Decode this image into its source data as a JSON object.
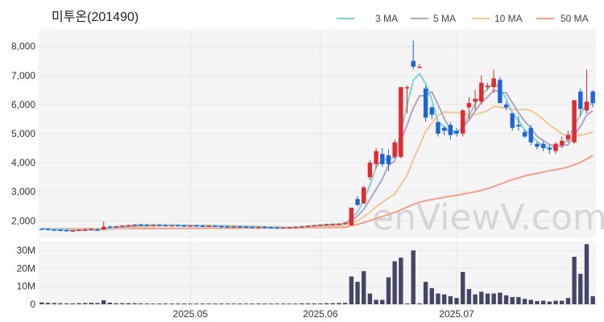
{
  "chart_data": {
    "type": "candlestick",
    "title": "미투온(201490)",
    "watermark": "enViewV.com",
    "legend": [
      {
        "name": "3 MA",
        "color": "#7fd3cf"
      },
      {
        "name": "5 MA",
        "color": "#b4a2c8"
      },
      {
        "name": "10 MA",
        "color": "#f2c79a"
      },
      {
        "name": "50 MA",
        "color": "#f2a08c"
      }
    ],
    "price_axis": {
      "ylim": [
        1400,
        8600
      ],
      "ticks": [
        "2,000",
        "3,000",
        "4,000",
        "5,000",
        "6,000",
        "7,000",
        "8,000"
      ],
      "tick_values": [
        2000,
        3000,
        4000,
        5000,
        6000,
        7000,
        8000
      ]
    },
    "volume_axis": {
      "ylim": [
        0,
        35
      ],
      "ticks": [
        "0",
        "10M",
        "20M",
        "30M"
      ],
      "tick_values": [
        0,
        10,
        20,
        30
      ]
    },
    "x_labels": [
      {
        "label": "2025.05",
        "index": 24
      },
      {
        "label": "2025.06",
        "index": 45
      },
      {
        "label": "2025.07",
        "index": 67
      }
    ],
    "colors": {
      "up": "#e8262b",
      "down": "#1b64da",
      "volume": "#454568",
      "grid": "#e6e6e6",
      "plot_bg": "#f5f5f5"
    },
    "candles": [
      [
        1730,
        1760,
        1700,
        1720,
        1.0
      ],
      [
        1720,
        1740,
        1690,
        1700,
        0.8
      ],
      [
        1700,
        1720,
        1680,
        1690,
        0.7
      ],
      [
        1690,
        1710,
        1670,
        1680,
        0.6
      ],
      [
        1680,
        1700,
        1660,
        1670,
        0.5
      ],
      [
        1670,
        1690,
        1650,
        1670,
        0.5
      ],
      [
        1670,
        1700,
        1650,
        1690,
        0.6
      ],
      [
        1690,
        1720,
        1660,
        1700,
        0.7
      ],
      [
        1700,
        1730,
        1680,
        1720,
        0.8
      ],
      [
        1700,
        1740,
        1660,
        1690,
        0.7
      ],
      [
        1700,
        1980,
        1680,
        1800,
        2.2
      ],
      [
        1800,
        1840,
        1760,
        1790,
        0.9
      ],
      [
        1790,
        1830,
        1770,
        1810,
        0.6
      ],
      [
        1810,
        1850,
        1790,
        1830,
        0.6
      ],
      [
        1830,
        1870,
        1810,
        1850,
        0.6
      ],
      [
        1850,
        1890,
        1830,
        1870,
        0.6
      ],
      [
        1870,
        1900,
        1840,
        1860,
        0.5
      ],
      [
        1860,
        1880,
        1840,
        1850,
        0.4
      ],
      [
        1850,
        1870,
        1830,
        1860,
        0.4
      ],
      [
        1860,
        1880,
        1840,
        1850,
        0.4
      ],
      [
        1850,
        1870,
        1830,
        1840,
        0.4
      ],
      [
        1840,
        1860,
        1820,
        1850,
        0.4
      ],
      [
        1850,
        1870,
        1830,
        1840,
        0.4
      ],
      [
        1840,
        1860,
        1820,
        1830,
        0.4
      ],
      [
        1830,
        1850,
        1810,
        1840,
        0.4
      ],
      [
        1840,
        1860,
        1820,
        1830,
        0.4
      ],
      [
        1830,
        1850,
        1810,
        1820,
        0.4
      ],
      [
        1820,
        1840,
        1800,
        1830,
        0.4
      ],
      [
        1830,
        1850,
        1810,
        1820,
        0.4
      ],
      [
        1820,
        1840,
        1800,
        1810,
        0.4
      ],
      [
        1810,
        1830,
        1790,
        1800,
        0.4
      ],
      [
        1800,
        1820,
        1780,
        1810,
        0.4
      ],
      [
        1810,
        1830,
        1790,
        1800,
        0.4
      ],
      [
        1800,
        1820,
        1780,
        1790,
        0.4
      ],
      [
        1790,
        1810,
        1770,
        1780,
        0.4
      ],
      [
        1780,
        1800,
        1760,
        1790,
        0.4
      ],
      [
        1790,
        1810,
        1770,
        1780,
        0.4
      ],
      [
        1780,
        1800,
        1760,
        1770,
        0.4
      ],
      [
        1770,
        1790,
        1750,
        1760,
        0.4
      ],
      [
        1760,
        1780,
        1740,
        1770,
        0.4
      ],
      [
        1770,
        1790,
        1750,
        1780,
        0.4
      ],
      [
        1780,
        1800,
        1760,
        1790,
        0.4
      ],
      [
        1790,
        1820,
        1770,
        1810,
        0.5
      ],
      [
        1810,
        1840,
        1790,
        1830,
        0.5
      ],
      [
        1830,
        1860,
        1810,
        1850,
        0.5
      ],
      [
        1850,
        1880,
        1830,
        1870,
        0.5
      ],
      [
        1870,
        1900,
        1850,
        1880,
        0.6
      ],
      [
        1880,
        1910,
        1860,
        1890,
        0.6
      ],
      [
        1890,
        1920,
        1870,
        1900,
        0.7
      ],
      [
        1900,
        1950,
        1880,
        1940,
        0.8
      ],
      [
        1850,
        2450,
        1840,
        2450,
        15.5
      ],
      [
        2750,
        2850,
        2500,
        2550,
        12.5
      ],
      [
        2600,
        3200,
        2600,
        3150,
        18.5
      ],
      [
        3500,
        4100,
        3400,
        4000,
        6.0
      ],
      [
        3950,
        4500,
        3800,
        4400,
        2.5
      ],
      [
        4300,
        4500,
        3850,
        3950,
        2.5
      ],
      [
        4250,
        4450,
        3700,
        3950,
        15.0
      ],
      [
        4200,
        4800,
        4150,
        4700,
        24.0
      ],
      [
        4200,
        6600,
        4150,
        6600,
        26.0
      ],
      [
        6600,
        6650,
        5700,
        6600,
        0.5
      ],
      [
        7500,
        8200,
        7200,
        7300,
        30.0
      ],
      [
        7300,
        7400,
        7300,
        7300,
        0.5
      ],
      [
        6550,
        6650,
        5400,
        5550,
        12.5
      ],
      [
        5900,
        5950,
        5500,
        5650,
        9.0
      ],
      [
        5400,
        5400,
        4900,
        5000,
        6.0
      ],
      [
        5200,
        5250,
        4950,
        5100,
        5.5
      ],
      [
        5300,
        5400,
        4800,
        4950,
        4.5
      ],
      [
        5100,
        5200,
        4900,
        5000,
        3.5
      ],
      [
        5000,
        5850,
        4900,
        5800,
        18.0
      ],
      [
        5900,
        6250,
        5500,
        6050,
        8.5
      ],
      [
        6100,
        6500,
        5800,
        6200,
        5.5
      ],
      [
        6100,
        7000,
        6000,
        6750,
        7.0
      ],
      [
        6600,
        6750,
        6500,
        6650,
        6.0
      ],
      [
        6600,
        7200,
        6400,
        6900,
        6.0
      ],
      [
        6850,
        6950,
        6100,
        6050,
        6.5
      ],
      [
        6000,
        6100,
        5800,
        5900,
        5.0
      ],
      [
        5700,
        5700,
        5100,
        5200,
        4.0
      ],
      [
        5300,
        5600,
        5100,
        5250,
        4.0
      ],
      [
        5050,
        5150,
        4850,
        4900,
        3.0
      ],
      [
        5200,
        5300,
        4600,
        4700,
        2.5
      ],
      [
        4650,
        4700,
        4450,
        4550,
        1.8
      ],
      [
        4650,
        4750,
        4400,
        4500,
        2.0
      ],
      [
        4500,
        4600,
        4300,
        4450,
        1.5
      ],
      [
        4400,
        4700,
        4300,
        4650,
        2.0
      ],
      [
        4600,
        4900,
        4500,
        4750,
        2.0
      ],
      [
        4800,
        5100,
        4700,
        4950,
        3.5
      ],
      [
        4700,
        6150,
        4650,
        6150,
        26.5
      ],
      [
        6450,
        6550,
        5600,
        5850,
        17.0
      ],
      [
        5800,
        7200,
        5700,
        6100,
        33.5
      ],
      [
        6450,
        6500,
        5900,
        6050,
        4.5
      ]
    ],
    "ma3": [
      1725,
      1715,
      1703,
      1690,
      1680,
      1673,
      1677,
      1687,
      1703,
      1703,
      1737,
      1760,
      1800,
      1810,
      1830,
      1850,
      1860,
      1860,
      1857,
      1853,
      1850,
      1847,
      1843,
      1837,
      1837,
      1833,
      1830,
      1827,
      1823,
      1820,
      1810,
      1807,
      1803,
      1800,
      1790,
      1787,
      1783,
      1780,
      1770,
      1767,
      1770,
      1780,
      1793,
      1810,
      1830,
      1850,
      1867,
      1880,
      1890,
      1910,
      2097,
      2313,
      2717,
      3233,
      3850,
      4117,
      4100,
      4200,
      5083,
      5967,
      6833,
      7067,
      6717,
      6167,
      5400,
      5250,
      5017,
      5017,
      5250,
      5617,
      6017,
      6333,
      6533,
      6767,
      6533,
      6200,
      5717,
      5450,
      5117,
      4950,
      4717,
      4583,
      4500,
      4533,
      4617,
      4783,
      5283,
      5650,
      6033,
      6000
    ],
    "ma5": [
      1725,
      1720,
      1710,
      1700,
      1692,
      1682,
      1680,
      1684,
      1692,
      1700,
      1726,
      1748,
      1766,
      1780,
      1800,
      1810,
      1840,
      1850,
      1856,
      1856,
      1854,
      1852,
      1848,
      1846,
      1842,
      1840,
      1836,
      1834,
      1830,
      1826,
      1820,
      1814,
      1810,
      1806,
      1800,
      1794,
      1788,
      1784,
      1776,
      1772,
      1770,
      1772,
      1782,
      1794,
      1808,
      1832,
      1850,
      1866,
      1880,
      1894,
      2007,
      2170,
      2397,
      2740,
      3084,
      3440,
      3905,
      4060,
      4770,
      5300,
      5880,
      6300,
      6310,
      6440,
      6000,
      5520,
      5140,
      5020,
      5210,
      5460,
      5780,
      6080,
      6260,
      6490,
      6440,
      6400,
      6060,
      5720,
      5420,
      5190,
      4900,
      4770,
      4620,
      4570,
      4570,
      4620,
      4960,
      5250,
      5640,
      5790
    ],
    "ma10": [
      1725,
      1720,
      1715,
      1710,
      1705,
      1698,
      1693,
      1691,
      1691,
      1692,
      1704,
      1714,
      1725,
      1738,
      1750,
      1766,
      1783,
      1800,
      1813,
      1829,
      1843,
      1849,
      1852,
      1853,
      1852,
      1849,
      1846,
      1843,
      1840,
      1837,
      1832,
      1827,
      1823,
      1819,
      1815,
      1809,
      1803,
      1797,
      1791,
      1786,
      1782,
      1781,
      1782,
      1784,
      1788,
      1797,
      1810,
      1824,
      1838,
      1851,
      1919,
      2006,
      2137,
      2301,
      2484,
      2642,
      2789,
      2911,
      3245,
      3559,
      4111,
      4583,
      5080,
      5363,
      5615,
      5749,
      5721,
      5734,
      5655,
      5651,
      5656,
      5716,
      5785,
      5940,
      5910,
      5875,
      5820,
      5829,
      5835,
      5788,
      5659,
      5487,
      5293,
      5150,
      5004,
      4910,
      4921,
      4946,
      4987,
      5070
    ],
    "ma50": [
      1725,
      1725,
      1725,
      1725,
      1726,
      1726,
      1727,
      1727,
      1728,
      1728,
      1729,
      1729,
      1730,
      1731,
      1732,
      1733,
      1734,
      1735,
      1736,
      1737,
      1738,
      1739,
      1740,
      1741,
      1742,
      1743,
      1744,
      1745,
      1746,
      1747,
      1748,
      1749,
      1750,
      1751,
      1752,
      1753,
      1754,
      1755,
      1756,
      1757,
      1758,
      1759,
      1760,
      1762,
      1764,
      1766,
      1768,
      1770,
      1772,
      1775,
      1830,
      1880,
      1940,
      2010,
      2080,
      2150,
      2220,
      2290,
      2380,
      2470,
      2570,
      2640,
      2690,
      2730,
      2770,
      2810,
      2850,
      2880,
      2920,
      2960,
      3000,
      3050,
      3110,
      3180,
      3260,
      3340,
      3420,
      3480,
      3540,
      3590,
      3630,
      3680,
      3720,
      3760,
      3800,
      3850,
      3930,
      4010,
      4130,
      4250
    ]
  }
}
